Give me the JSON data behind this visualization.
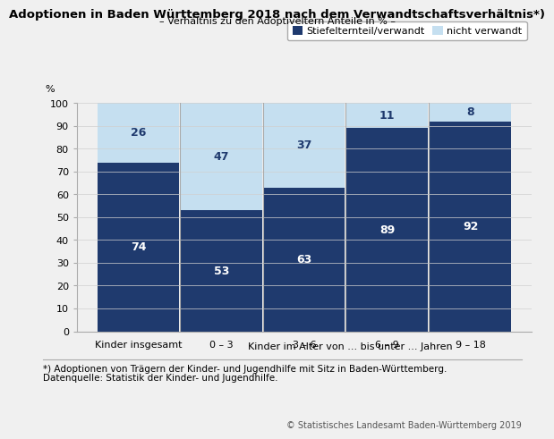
{
  "title": "Adoptionen in Baden Württemberg 2018 nach dem Verwandtschaftsverhältnis*)",
  "subtitle": "– Verhältnis zu den Adoptiveltern Anteile in % –",
  "categories": [
    "Kinder insgesamt",
    "0 – 3",
    "3 – 6",
    "6 – 9",
    "9 – 18"
  ],
  "xlabel": "Kinder im Alter von ... bis unter ... Jahren",
  "ylabel": "%",
  "dark_values": [
    74,
    53,
    63,
    89,
    92
  ],
  "light_values": [
    26,
    47,
    37,
    11,
    8
  ],
  "dark_color": "#1f3a6e",
  "light_color": "#c5dff0",
  "legend_labels": [
    "Stiefelternteil/verwandt",
    "nicht verwandt"
  ],
  "footnote1": "*) Adoptionen von Trägern der Kinder- und Jugendhilfe mit Sitz in Baden-Württemberg.",
  "footnote2": "Datenquelle: Statistik der Kinder- und Jugendhilfe.",
  "copyright": "© Statistisches Landesamt Baden-Württemberg 2019",
  "ylim": [
    0,
    100
  ],
  "yticks": [
    0,
    10,
    20,
    30,
    40,
    50,
    60,
    70,
    80,
    90,
    100
  ],
  "background_color": "#f0f0f0",
  "bar_width": 0.98,
  "grid_color": "#d0d0d0",
  "title_fontsize": 9.5,
  "subtitle_fontsize": 8.0,
  "label_fontsize": 8.0,
  "tick_fontsize": 8.0,
  "legend_fontsize": 8.0,
  "footnote_fontsize": 7.5,
  "copyright_fontsize": 7.0,
  "value_fontsize_dark": 9,
  "value_fontsize_light": 9,
  "separator_color": "#aaaaaa",
  "spine_color": "#aaaaaa"
}
